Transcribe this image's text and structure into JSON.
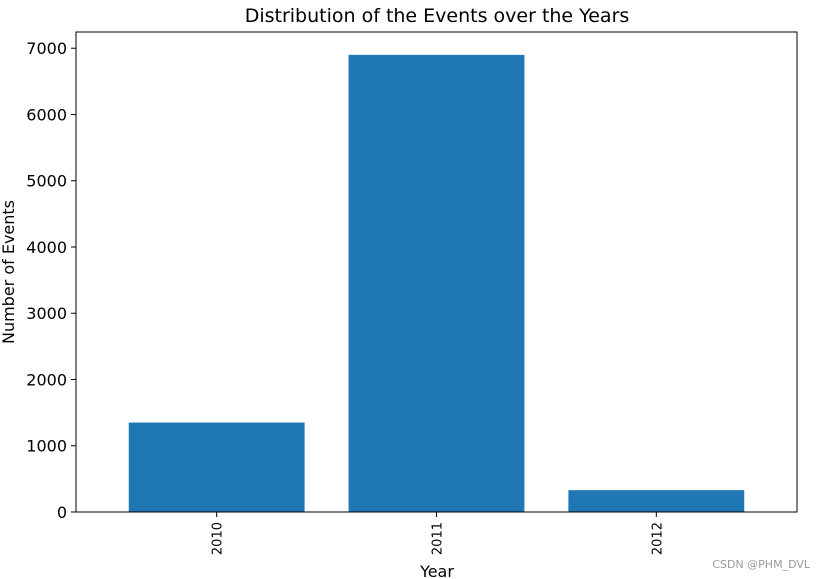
{
  "chart_data": {
    "type": "bar",
    "title": "Distribution of the Events over the Years",
    "xlabel": "Year",
    "ylabel": "Number of Events",
    "categories": [
      "2010",
      "2011",
      "2012"
    ],
    "values": [
      1350,
      6900,
      330
    ],
    "ylim": [
      0,
      7245
    ],
    "yticks": [
      "0",
      "1000",
      "2000",
      "3000",
      "4000",
      "5000",
      "6000",
      "7000"
    ],
    "bar_color": "#1f77b4",
    "grid": false,
    "xtick_rotation": "vertical"
  },
  "watermark": "CSDN @PHM_DVL"
}
